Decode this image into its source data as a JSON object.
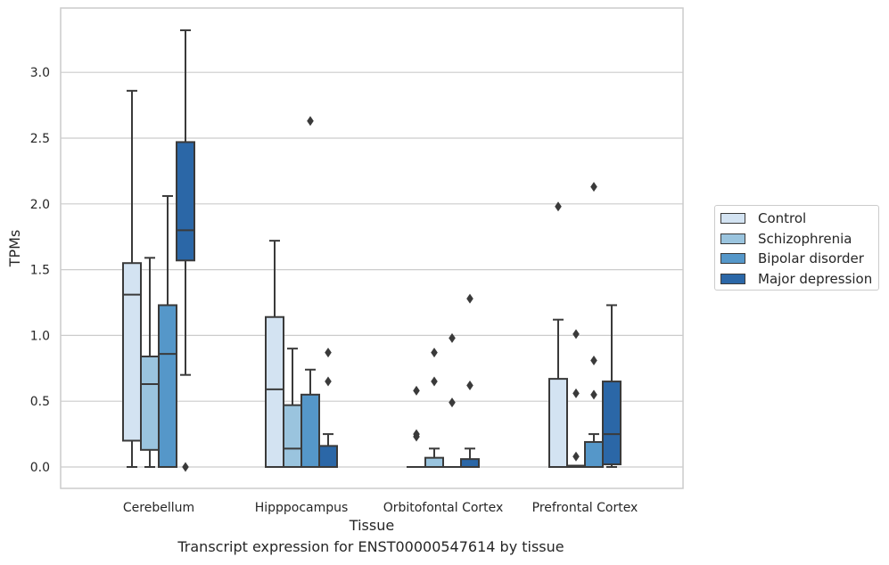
{
  "caption": "Transcript expression for ENST00000547614 by tissue",
  "chart_data": {
    "type": "box",
    "xlabel": "Tissue",
    "ylabel": "TPMs",
    "ylim": [
      -0.16,
      3.45
    ],
    "yticks": [
      "0.0",
      "0.5",
      "1.0",
      "1.5",
      "2.0",
      "2.5",
      "3.0"
    ],
    "grid": true,
    "legend_position": "right",
    "categories": [
      "Cerebellum",
      "Hipppocampus",
      "Orbitofontal Cortex",
      "Prefrontal Cortex"
    ],
    "series": [
      {
        "name": "Control",
        "color": "#d3e3f2",
        "boxes": [
          {
            "whislo": 0.0,
            "q1": 0.2,
            "med": 1.31,
            "q3": 1.55,
            "whishi": 2.86,
            "fliers": []
          },
          {
            "whislo": 0.0,
            "q1": 0.0,
            "med": 0.59,
            "q3": 1.14,
            "whishi": 1.72,
            "fliers": []
          },
          {
            "whislo": 0.0,
            "q1": 0.0,
            "med": 0.0,
            "q3": 0.0,
            "whishi": 0.0,
            "fliers": [
              0.58,
              0.25,
              0.23
            ]
          },
          {
            "whislo": 0.0,
            "q1": 0.0,
            "med": 0.0,
            "q3": 0.67,
            "whishi": 1.12,
            "fliers": [
              1.98
            ]
          }
        ]
      },
      {
        "name": "Schizophrenia",
        "color": "#9ac4de",
        "boxes": [
          {
            "whislo": 0.0,
            "q1": 0.13,
            "med": 0.63,
            "q3": 0.84,
            "whishi": 1.59,
            "fliers": []
          },
          {
            "whislo": 0.0,
            "q1": 0.0,
            "med": 0.14,
            "q3": 0.47,
            "whishi": 0.9,
            "fliers": []
          },
          {
            "whislo": 0.0,
            "q1": 0.0,
            "med": 0.0,
            "q3": 0.07,
            "whishi": 0.14,
            "fliers": [
              0.87,
              0.65
            ]
          },
          {
            "whislo": 0.0,
            "q1": 0.0,
            "med": 0.0,
            "q3": 0.01,
            "whishi": 0.01,
            "fliers": [
              1.01,
              0.56,
              0.08
            ]
          }
        ]
      },
      {
        "name": "Bipolar disorder",
        "color": "#5597c9",
        "boxes": [
          {
            "whislo": 0.0,
            "q1": 0.0,
            "med": 0.86,
            "q3": 1.23,
            "whishi": 2.06,
            "fliers": []
          },
          {
            "whislo": 0.0,
            "q1": 0.0,
            "med": 0.0,
            "q3": 0.55,
            "whishi": 0.74,
            "fliers": [
              2.63
            ]
          },
          {
            "whislo": 0.0,
            "q1": 0.0,
            "med": 0.0,
            "q3": 0.0,
            "whishi": 0.0,
            "fliers": [
              0.98,
              0.49
            ]
          },
          {
            "whislo": 0.0,
            "q1": 0.0,
            "med": 0.0,
            "q3": 0.19,
            "whishi": 0.25,
            "fliers": [
              2.13,
              0.81,
              0.55
            ]
          }
        ]
      },
      {
        "name": "Major depression",
        "color": "#2b67a7",
        "boxes": [
          {
            "whislo": 0.7,
            "q1": 1.57,
            "med": 1.8,
            "q3": 2.47,
            "whishi": 3.32,
            "fliers": [
              0.0
            ]
          },
          {
            "whislo": 0.0,
            "q1": 0.0,
            "med": 0.0,
            "q3": 0.16,
            "whishi": 0.25,
            "fliers": [
              0.87,
              0.65
            ]
          },
          {
            "whislo": 0.0,
            "q1": 0.0,
            "med": 0.0,
            "q3": 0.06,
            "whishi": 0.14,
            "fliers": [
              1.28,
              0.62
            ]
          },
          {
            "whislo": 0.0,
            "q1": 0.02,
            "med": 0.25,
            "q3": 0.65,
            "whishi": 1.23,
            "fliers": []
          }
        ]
      }
    ]
  }
}
